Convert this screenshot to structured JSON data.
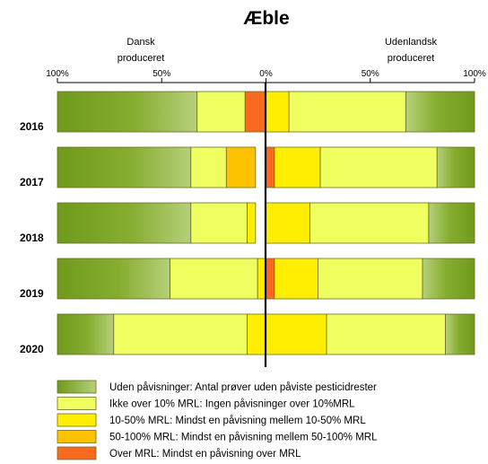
{
  "chart_data": {
    "type": "bar",
    "title": "Æble",
    "left_header": [
      "Dansk",
      "produceret"
    ],
    "right_header": [
      "Udenlandsk",
      "produceret"
    ],
    "x_ticks": [
      "100%",
      "50%",
      "0%",
      "50%",
      "100%"
    ],
    "xlim": [
      -100,
      100
    ],
    "categories": [
      "2016",
      "2017",
      "2018",
      "2019",
      "2020"
    ],
    "series": [
      {
        "key": "uden",
        "name": "Uden påvisninger: Antal prøver uden påviste pesticidrester",
        "color": "#7aa322"
      },
      {
        "key": "ikke10",
        "name": "Ikke over 10% MRL: Ingen påvisninger over 10%MRL",
        "color": "#f0ff60"
      },
      {
        "key": "mrl10_50",
        "name": "10-50% MRL: Mindst en påvisning mellem 10-50% MRL",
        "color": "#ffee00"
      },
      {
        "key": "mrl50_100",
        "name": "50-100% MRL: Mindst en påvisning mellem 50-100% MRL",
        "color": "#ffc200"
      },
      {
        "key": "over",
        "name": "Over MRL:  Mindst en påvisning over MRL",
        "color": "#f86a20"
      }
    ],
    "dansk": [
      {
        "uden": 67,
        "ikke10": 23,
        "mrl10_50": 0,
        "mrl50_100": 0,
        "over": 10
      },
      {
        "uden": 64,
        "ikke10": 17,
        "mrl10_50": 0,
        "mrl50_100": 14,
        "over": 0
      },
      {
        "uden": 64,
        "ikke10": 27,
        "mrl10_50": 4,
        "mrl50_100": 0,
        "over": 0
      },
      {
        "uden": 54,
        "ikke10": 42,
        "mrl10_50": 4,
        "mrl50_100": 0,
        "over": 0
      },
      {
        "uden": 27,
        "ikke10": 64,
        "mrl10_50": 9,
        "mrl50_100": 0,
        "over": 0
      }
    ],
    "udenlandsk": [
      {
        "uden": 33,
        "ikke10": 56,
        "mrl10_50": 11,
        "mrl50_100": 0,
        "over": 0
      },
      {
        "uden": 18,
        "ikke10": 56,
        "mrl10_50": 22,
        "mrl50_100": 0,
        "over": 4
      },
      {
        "uden": 22,
        "ikke10": 57,
        "mrl10_50": 21,
        "mrl50_100": 0,
        "over": 0
      },
      {
        "uden": 25,
        "ikke10": 50,
        "mrl10_50": 21,
        "mrl50_100": 0,
        "over": 4
      },
      {
        "uden": 14,
        "ikke10": 57,
        "mrl10_50": 29,
        "mrl50_100": 0,
        "over": 0
      }
    ]
  }
}
